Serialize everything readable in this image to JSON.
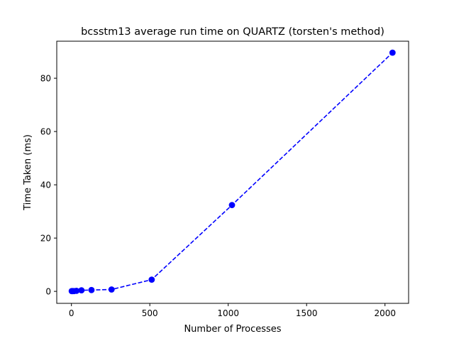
{
  "chart_data": {
    "type": "line",
    "title": "bcsstm13 average run time on QUARTZ (torsten's method)",
    "xlabel": "Number of Processes",
    "ylabel": "Time Taken (ms)",
    "xlim": [
      -93.6,
      2150.6
    ],
    "ylim": [
      -4.5,
      93.9
    ],
    "xticks": [
      0,
      500,
      1000,
      1500,
      2000
    ],
    "yticks": [
      0,
      20,
      40,
      60,
      80
    ],
    "grid": false,
    "legend": "none",
    "series": [
      {
        "x": [
          2,
          4,
          8,
          16,
          32,
          64,
          128,
          256,
          512,
          1024,
          2048
        ],
        "y": [
          0.1,
          0.1,
          0.1,
          0.1,
          0.2,
          0.4,
          0.5,
          0.7,
          4.4,
          32.4,
          89.6
        ],
        "color": "#0000ff",
        "line_style": "dashed",
        "marker": "circle"
      }
    ]
  }
}
